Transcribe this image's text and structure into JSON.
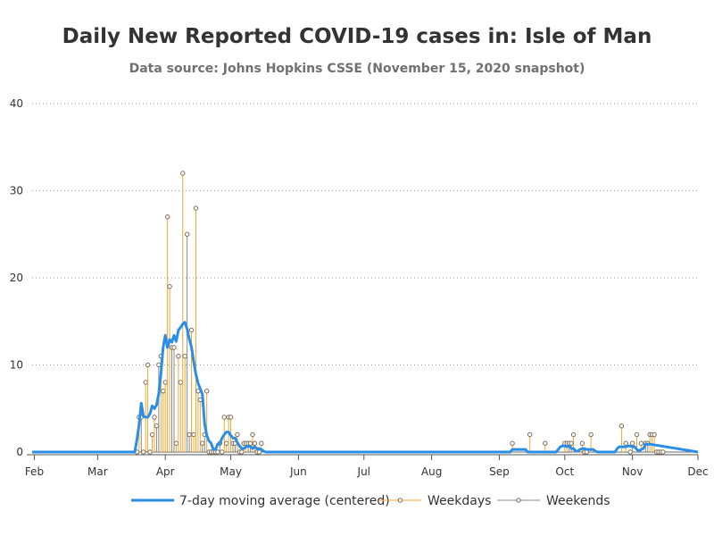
{
  "chart_data": {
    "type": "line",
    "title": "Daily New Reported COVID-19 cases in: Isle of Man",
    "subtitle": "Data source: Johns Hopkins CSSE (November 15, 2020 snapshot)",
    "xlabel": "",
    "ylabel": "",
    "xlim": [
      "2020-01-31",
      "2020-12-01"
    ],
    "ylim": [
      0,
      40
    ],
    "y_ticks": [
      0,
      10,
      20,
      30,
      40
    ],
    "x_ticks": [
      {
        "date": "2020-02-01",
        "label": "Feb"
      },
      {
        "date": "2020-03-01",
        "label": "Mar"
      },
      {
        "date": "2020-04-01",
        "label": "Apr"
      },
      {
        "date": "2020-05-01",
        "label": "May"
      },
      {
        "date": "2020-06-01",
        "label": "Jun"
      },
      {
        "date": "2020-07-01",
        "label": "Jul"
      },
      {
        "date": "2020-08-01",
        "label": "Aug"
      },
      {
        "date": "2020-09-01",
        "label": "Sep"
      },
      {
        "date": "2020-10-01",
        "label": "Oct"
      },
      {
        "date": "2020-11-01",
        "label": "Nov"
      },
      {
        "date": "2020-12-01",
        "label": "Dec"
      }
    ],
    "grid": "horizontal dotted",
    "legend_position": "bottom",
    "series": [
      {
        "name": "7-day moving average (centered)",
        "style": "line",
        "color": "#2a8ee8",
        "points": [
          [
            "2020-01-31",
            0
          ],
          [
            "2020-03-18",
            0
          ],
          [
            "2020-03-19",
            1.4
          ],
          [
            "2020-03-20",
            3.1
          ],
          [
            "2020-03-21",
            5.6
          ],
          [
            "2020-03-22",
            4.1
          ],
          [
            "2020-03-23",
            4.0
          ],
          [
            "2020-03-24",
            4.0
          ],
          [
            "2020-03-25",
            4.4
          ],
          [
            "2020-03-26",
            5.3
          ],
          [
            "2020-03-27",
            5.0
          ],
          [
            "2020-03-28",
            5.4
          ],
          [
            "2020-03-29",
            6.7
          ],
          [
            "2020-03-30",
            9.0
          ],
          [
            "2020-03-31",
            12.0
          ],
          [
            "2020-04-01",
            13.4
          ],
          [
            "2020-04-02",
            12.0
          ],
          [
            "2020-04-03",
            12.9
          ],
          [
            "2020-04-04",
            12.6
          ],
          [
            "2020-04-05",
            13.4
          ],
          [
            "2020-04-06",
            12.7
          ],
          [
            "2020-04-07",
            14.0
          ],
          [
            "2020-04-08",
            14.3
          ],
          [
            "2020-04-09",
            14.7
          ],
          [
            "2020-04-10",
            14.9
          ],
          [
            "2020-04-11",
            14.1
          ],
          [
            "2020-04-12",
            13.0
          ],
          [
            "2020-04-13",
            12.0
          ],
          [
            "2020-04-14",
            10.4
          ],
          [
            "2020-04-15",
            9.0
          ],
          [
            "2020-04-16",
            7.9
          ],
          [
            "2020-04-17",
            7.3
          ],
          [
            "2020-04-18",
            6.6
          ],
          [
            "2020-04-19",
            3.3
          ],
          [
            "2020-04-20",
            1.9
          ],
          [
            "2020-04-21",
            1.3
          ],
          [
            "2020-04-22",
            1.0
          ],
          [
            "2020-04-23",
            0.3
          ],
          [
            "2020-04-24",
            0.3
          ],
          [
            "2020-04-25",
            0.9
          ],
          [
            "2020-04-26",
            1.0
          ],
          [
            "2020-04-27",
            1.6
          ],
          [
            "2020-04-28",
            2.0
          ],
          [
            "2020-04-29",
            2.3
          ],
          [
            "2020-04-30",
            2.3
          ],
          [
            "2020-05-01",
            1.9
          ],
          [
            "2020-05-02",
            1.6
          ],
          [
            "2020-05-03",
            1.6
          ],
          [
            "2020-05-04",
            1.1
          ],
          [
            "2020-05-05",
            0.7
          ],
          [
            "2020-05-06",
            0.4
          ],
          [
            "2020-05-07",
            0.4
          ],
          [
            "2020-05-08",
            0.6
          ],
          [
            "2020-05-09",
            0.7
          ],
          [
            "2020-05-10",
            0.6
          ],
          [
            "2020-05-11",
            0.4
          ],
          [
            "2020-05-12",
            0.6
          ],
          [
            "2020-05-13",
            0.4
          ],
          [
            "2020-05-14",
            0.4
          ],
          [
            "2020-05-15",
            0.3
          ],
          [
            "2020-05-16",
            0.1
          ],
          [
            "2020-05-17",
            0
          ],
          [
            "2020-09-06",
            0
          ],
          [
            "2020-09-07",
            0.3
          ],
          [
            "2020-09-13",
            0.3
          ],
          [
            "2020-09-14",
            0
          ],
          [
            "2020-09-27",
            0
          ],
          [
            "2020-09-28",
            0.3
          ],
          [
            "2020-09-29",
            0.6
          ],
          [
            "2020-09-30",
            0.7
          ],
          [
            "2020-10-01",
            0.7
          ],
          [
            "2020-10-02",
            0.6
          ],
          [
            "2020-10-03",
            0.7
          ],
          [
            "2020-10-04",
            0.4
          ],
          [
            "2020-10-05",
            0.4
          ],
          [
            "2020-10-06",
            0.1
          ],
          [
            "2020-10-07",
            0.1
          ],
          [
            "2020-10-08",
            0.3
          ],
          [
            "2020-10-09",
            0.4
          ],
          [
            "2020-10-10",
            0.4
          ],
          [
            "2020-10-11",
            0.3
          ],
          [
            "2020-10-12",
            0.3
          ],
          [
            "2020-10-13",
            0.3
          ],
          [
            "2020-10-14",
            0.3
          ],
          [
            "2020-10-15",
            0.1
          ],
          [
            "2020-10-16",
            0
          ],
          [
            "2020-10-24",
            0
          ],
          [
            "2020-10-25",
            0.4
          ],
          [
            "2020-10-26",
            0.6
          ],
          [
            "2020-10-27",
            0.6
          ],
          [
            "2020-10-28",
            0.6
          ],
          [
            "2020-10-29",
            0.6
          ],
          [
            "2020-10-30",
            0.7
          ],
          [
            "2020-10-31",
            0.7
          ],
          [
            "2020-11-01",
            0.6
          ],
          [
            "2020-11-02",
            0.6
          ],
          [
            "2020-11-03",
            0.3
          ],
          [
            "2020-11-04",
            0.1
          ],
          [
            "2020-11-05",
            0.3
          ],
          [
            "2020-11-06",
            0.4
          ],
          [
            "2020-11-07",
            0.9
          ],
          [
            "2020-11-08",
            0.9
          ],
          [
            "2020-11-09",
            0.9
          ],
          [
            "2020-12-01",
            0
          ]
        ]
      },
      {
        "name": "Weekdays",
        "style": "needle",
        "color": "#f0a830",
        "points": [
          [
            "2020-03-19",
            0
          ],
          [
            "2020-03-20",
            4
          ],
          [
            "2020-03-23",
            8
          ],
          [
            "2020-03-24",
            10
          ],
          [
            "2020-03-25",
            0
          ],
          [
            "2020-03-26",
            2
          ],
          [
            "2020-03-27",
            4
          ],
          [
            "2020-03-30",
            11
          ],
          [
            "2020-03-31",
            7
          ],
          [
            "2020-04-01",
            8
          ],
          [
            "2020-04-02",
            27
          ],
          [
            "2020-04-03",
            19
          ],
          [
            "2020-04-06",
            1
          ],
          [
            "2020-04-07",
            11
          ],
          [
            "2020-04-08",
            8
          ],
          [
            "2020-04-09",
            32
          ],
          [
            "2020-04-10",
            11
          ],
          [
            "2020-04-13",
            14
          ],
          [
            "2020-04-14",
            2
          ],
          [
            "2020-04-15",
            28
          ],
          [
            "2020-04-16",
            7
          ],
          [
            "2020-04-17",
            6
          ],
          [
            "2020-04-20",
            7
          ],
          [
            "2020-04-21",
            0
          ],
          [
            "2020-04-22",
            0
          ],
          [
            "2020-04-23",
            0
          ],
          [
            "2020-04-24",
            0
          ],
          [
            "2020-04-27",
            0
          ],
          [
            "2020-04-28",
            4
          ],
          [
            "2020-04-29",
            1
          ],
          [
            "2020-04-30",
            4
          ],
          [
            "2020-05-01",
            4
          ],
          [
            "2020-05-04",
            2
          ],
          [
            "2020-05-05",
            0
          ],
          [
            "2020-05-06",
            0
          ],
          [
            "2020-05-07",
            1
          ],
          [
            "2020-05-08",
            1
          ],
          [
            "2020-05-11",
            2
          ],
          [
            "2020-05-12",
            1
          ],
          [
            "2020-05-13",
            0
          ],
          [
            "2020-05-14",
            0
          ],
          [
            "2020-05-15",
            1
          ],
          [
            "2020-09-07",
            1
          ],
          [
            "2020-09-15",
            2
          ],
          [
            "2020-09-22",
            1
          ],
          [
            "2020-10-01",
            1
          ],
          [
            "2020-10-02",
            1
          ],
          [
            "2020-10-05",
            2
          ],
          [
            "2020-10-09",
            1
          ],
          [
            "2020-10-13",
            2
          ],
          [
            "2020-10-27",
            3
          ],
          [
            "2020-10-29",
            1
          ],
          [
            "2020-11-03",
            2
          ],
          [
            "2020-11-05",
            1
          ],
          [
            "2020-11-09",
            2
          ],
          [
            "2020-11-10",
            2
          ],
          [
            "2020-11-11",
            2
          ],
          [
            "2020-11-12",
            0
          ],
          [
            "2020-11-13",
            0
          ]
        ]
      },
      {
        "name": "Weekends",
        "style": "needle",
        "color": "#888888",
        "points": [
          [
            "2020-03-21",
            4
          ],
          [
            "2020-03-22",
            0
          ],
          [
            "2020-03-28",
            3
          ],
          [
            "2020-03-29",
            10
          ],
          [
            "2020-04-04",
            12
          ],
          [
            "2020-04-05",
            12
          ],
          [
            "2020-04-11",
            25
          ],
          [
            "2020-04-12",
            2
          ],
          [
            "2020-04-18",
            1
          ],
          [
            "2020-04-19",
            2
          ],
          [
            "2020-04-25",
            0
          ],
          [
            "2020-04-26",
            1
          ],
          [
            "2020-05-02",
            1
          ],
          [
            "2020-05-03",
            1
          ],
          [
            "2020-05-09",
            1
          ],
          [
            "2020-05-10",
            1
          ],
          [
            "2020-10-03",
            1
          ],
          [
            "2020-10-04",
            1
          ],
          [
            "2020-10-10",
            0
          ],
          [
            "2020-10-11",
            0
          ],
          [
            "2020-10-31",
            0
          ],
          [
            "2020-11-01",
            1
          ],
          [
            "2020-11-07",
            1
          ],
          [
            "2020-11-08",
            1
          ],
          [
            "2020-11-14",
            0
          ],
          [
            "2020-11-15",
            0
          ]
        ]
      }
    ],
    "legend": [
      {
        "label": "7-day moving average (centered)",
        "type": "line",
        "color": "#2a8ee8"
      },
      {
        "label": "Weekdays",
        "type": "needle",
        "color": "#f0a830"
      },
      {
        "label": "Weekends",
        "type": "needle",
        "color": "#888888"
      }
    ]
  }
}
